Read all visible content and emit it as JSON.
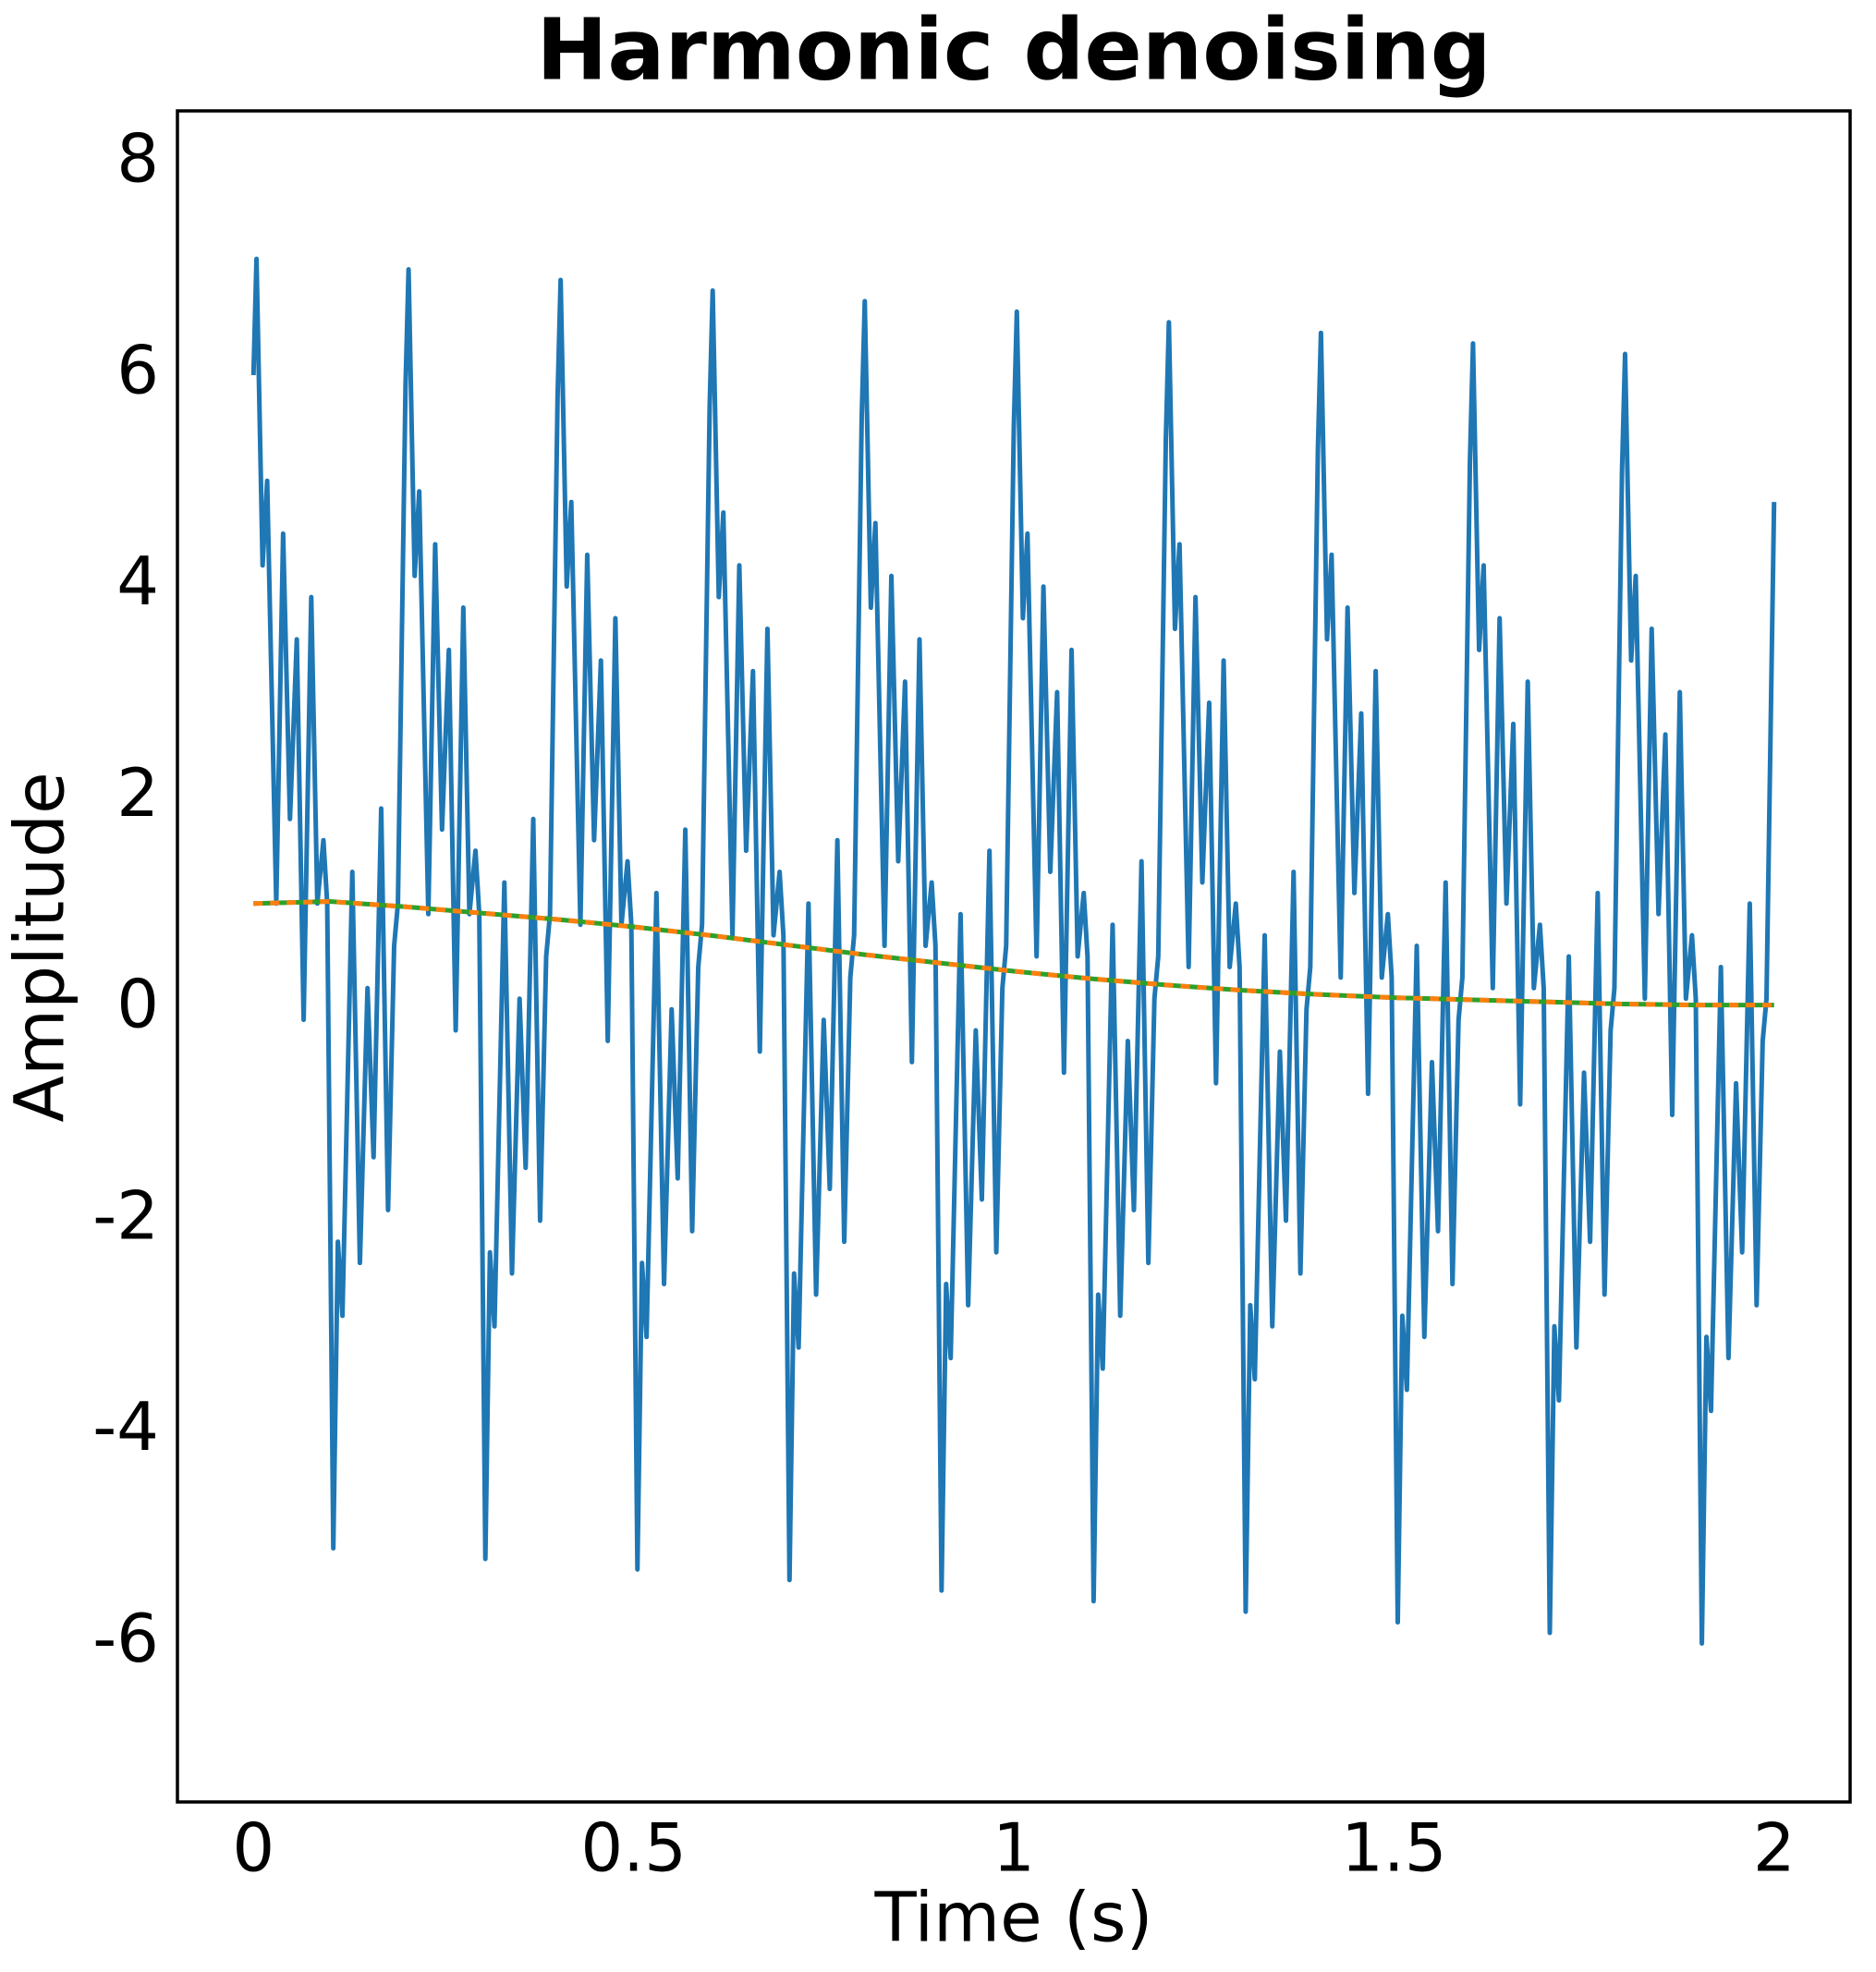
{
  "chart_data": {
    "type": "line",
    "title": "Harmonic denoising",
    "x_label": "Time (s)",
    "y_label": "Amplitude",
    "xlim": [
      -0.1,
      2.1
    ],
    "ylim": [
      -7.5,
      8.5
    ],
    "xticks": [
      0,
      0.5,
      1,
      1.5,
      2
    ],
    "yticks": [
      -6,
      -4,
      -2,
      0,
      2,
      4,
      6,
      8
    ],
    "grid": false,
    "series": [
      {
        "color": "#1f77b4",
        "dash": false,
        "x": [
          0,
          0.004,
          0.012,
          0.018,
          0.03,
          0.039,
          0.048,
          0.057,
          0.066,
          0.076,
          0.084,
          0.092,
          0.097,
          0.105,
          0.111,
          0.117,
          0.13,
          0.14,
          0.15,
          0.158,
          0.168,
          0.177,
          0.185,
          0.19,
          0.2,
          0.204,
          0.212,
          0.218,
          0.23,
          0.239,
          0.248,
          0.257,
          0.266,
          0.276,
          0.284,
          0.292,
          0.297,
          0.305,
          0.311,
          0.317,
          0.33,
          0.34,
          0.35,
          0.358,
          0.368,
          0.377,
          0.385,
          0.39,
          0.4,
          0.404,
          0.412,
          0.418,
          0.43,
          0.439,
          0.448,
          0.457,
          0.466,
          0.476,
          0.484,
          0.492,
          0.497,
          0.505,
          0.511,
          0.517,
          0.53,
          0.54,
          0.55,
          0.558,
          0.568,
          0.577,
          0.585,
          0.59,
          0.6,
          0.604,
          0.612,
          0.618,
          0.63,
          0.639,
          0.648,
          0.657,
          0.666,
          0.676,
          0.684,
          0.692,
          0.697,
          0.705,
          0.711,
          0.717,
          0.73,
          0.74,
          0.75,
          0.758,
          0.768,
          0.777,
          0.785,
          0.79,
          0.8,
          0.804,
          0.812,
          0.818,
          0.83,
          0.839,
          0.848,
          0.857,
          0.866,
          0.876,
          0.884,
          0.892,
          0.897,
          0.905,
          0.911,
          0.917,
          0.93,
          0.94,
          0.95,
          0.958,
          0.968,
          0.977,
          0.985,
          0.99,
          1,
          1.004,
          1.012,
          1.018,
          1.03,
          1.039,
          1.048,
          1.057,
          1.066,
          1.076,
          1.084,
          1.092,
          1.097,
          1.105,
          1.111,
          1.117,
          1.13,
          1.14,
          1.15,
          1.158,
          1.168,
          1.177,
          1.185,
          1.19,
          1.2,
          1.204,
          1.212,
          1.218,
          1.23,
          1.239,
          1.248,
          1.257,
          1.266,
          1.276,
          1.284,
          1.292,
          1.297,
          1.305,
          1.311,
          1.317,
          1.33,
          1.34,
          1.35,
          1.358,
          1.368,
          1.377,
          1.385,
          1.39,
          1.4,
          1.404,
          1.412,
          1.418,
          1.43,
          1.439,
          1.448,
          1.457,
          1.466,
          1.476,
          1.484,
          1.492,
          1.497,
          1.505,
          1.511,
          1.517,
          1.53,
          1.54,
          1.55,
          1.558,
          1.568,
          1.577,
          1.585,
          1.59,
          1.6,
          1.604,
          1.612,
          1.618,
          1.63,
          1.639,
          1.648,
          1.657,
          1.666,
          1.676,
          1.684,
          1.692,
          1.697,
          1.705,
          1.711,
          1.717,
          1.73,
          1.74,
          1.75,
          1.758,
          1.768,
          1.777,
          1.785,
          1.79,
          1.8,
          1.804,
          1.812,
          1.818,
          1.83,
          1.839,
          1.848,
          1.857,
          1.866,
          1.876,
          1.884,
          1.892,
          1.897,
          1.905,
          1.911,
          1.917,
          1.93,
          1.94,
          1.95,
          1.958,
          1.968,
          1.977,
          1.985,
          1.99,
          2
        ],
        "values": [
          6,
          7.1,
          4.2,
          5,
          1,
          4.5,
          1.8,
          3.5,
          -0.1,
          3.9,
          1,
          1.6,
          1,
          -5.1,
          -2.2,
          -2.9,
          1.3,
          -2.4,
          0.2,
          -1.4,
          1.9,
          -1.9,
          0.6,
          1,
          5.9,
          7,
          4.1,
          4.9,
          0.9,
          4.4,
          1.7,
          3.4,
          -0.2,
          3.8,
          0.9,
          1.5,
          0.9,
          -5.2,
          -2.3,
          -3,
          1.2,
          -2.5,
          0.1,
          -1.5,
          1.8,
          -2,
          0.5,
          0.9,
          5.8,
          6.9,
          4,
          4.8,
          0.8,
          4.3,
          1.6,
          3.3,
          -0.3,
          3.7,
          0.8,
          1.4,
          0.8,
          -5.3,
          -2.4,
          -3.1,
          1.1,
          -2.6,
          0,
          -1.6,
          1.7,
          -2.1,
          0.4,
          0.8,
          5.7,
          6.8,
          3.9,
          4.7,
          0.7,
          4.2,
          1.5,
          3.2,
          -0.4,
          3.6,
          0.7,
          1.3,
          0.7,
          -5.4,
          -2.5,
          -3.2,
          1,
          -2.7,
          -0.1,
          -1.7,
          1.6,
          -2.2,
          0.3,
          0.7,
          5.6,
          6.7,
          3.8,
          4.6,
          0.6,
          4.1,
          1.4,
          3.1,
          -0.5,
          3.5,
          0.6,
          1.2,
          0.6,
          -5.5,
          -2.6,
          -3.3,
          0.9,
          -2.8,
          -0.2,
          -1.8,
          1.5,
          -2.3,
          0.2,
          0.6,
          5.5,
          6.6,
          3.7,
          4.5,
          0.5,
          4,
          1.3,
          3,
          -0.6,
          3.4,
          0.5,
          1.1,
          0.5,
          -5.6,
          -2.7,
          -3.4,
          0.8,
          -2.9,
          -0.3,
          -1.9,
          1.4,
          -2.4,
          0.1,
          0.5,
          5.4,
          6.5,
          3.6,
          4.4,
          0.4,
          3.9,
          1.2,
          2.9,
          -0.7,
          3.3,
          0.4,
          1,
          0.4,
          -5.7,
          -2.8,
          -3.5,
          0.7,
          -3,
          -0.4,
          -2,
          1.3,
          -2.5,
          0,
          0.4,
          5.3,
          6.4,
          3.5,
          4.3,
          0.3,
          3.8,
          1.1,
          2.8,
          -0.8,
          3.2,
          0.3,
          0.9,
          0.3,
          -5.8,
          -2.9,
          -3.6,
          0.6,
          -3.1,
          -0.5,
          -2.1,
          1.2,
          -2.6,
          -0.1,
          0.3,
          5.2,
          6.3,
          3.4,
          4.2,
          0.2,
          3.7,
          1,
          2.7,
          -0.9,
          3.1,
          0.2,
          0.8,
          0.2,
          -5.9,
          -3,
          -3.7,
          0.5,
          -3.2,
          -0.6,
          -2.2,
          1.1,
          -2.7,
          -0.2,
          0.2,
          5.1,
          6.2,
          3.3,
          4.1,
          0.1,
          3.6,
          0.9,
          2.6,
          -1,
          3,
          0.1,
          0.7,
          0.1,
          -6,
          -3.1,
          -3.8,
          0.4,
          -3.3,
          -0.7,
          -2.3,
          1,
          -2.8,
          -0.3,
          0.1,
          4.8
        ]
      },
      {
        "color": "#2ca02c",
        "dash": false,
        "x": [
          0,
          0.1,
          0.2,
          0.3,
          0.4,
          0.5,
          0.6,
          0.7,
          0.8,
          0.9,
          1,
          1.1,
          1.2,
          1.3,
          1.4,
          1.5,
          1.6,
          1.7,
          1.8,
          1.9,
          2
        ],
        "values": [
          1,
          1.02,
          0.97,
          0.91,
          0.85,
          0.78,
          0.7,
          0.61,
          0.52,
          0.44,
          0.36,
          0.29,
          0.23,
          0.18,
          0.14,
          0.11,
          0.09,
          0.07,
          0.05,
          0.04,
          0.04
        ]
      },
      {
        "color": "#ff7f0e",
        "dash": true,
        "x": [
          0,
          0.1,
          0.2,
          0.3,
          0.4,
          0.5,
          0.6,
          0.7,
          0.8,
          0.9,
          1,
          1.1,
          1.2,
          1.3,
          1.4,
          1.5,
          1.6,
          1.7,
          1.8,
          1.9,
          2
        ],
        "values": [
          1,
          1.02,
          0.97,
          0.91,
          0.85,
          0.78,
          0.7,
          0.61,
          0.52,
          0.44,
          0.36,
          0.29,
          0.23,
          0.18,
          0.14,
          0.11,
          0.09,
          0.07,
          0.05,
          0.04,
          0.04
        ]
      }
    ]
  }
}
